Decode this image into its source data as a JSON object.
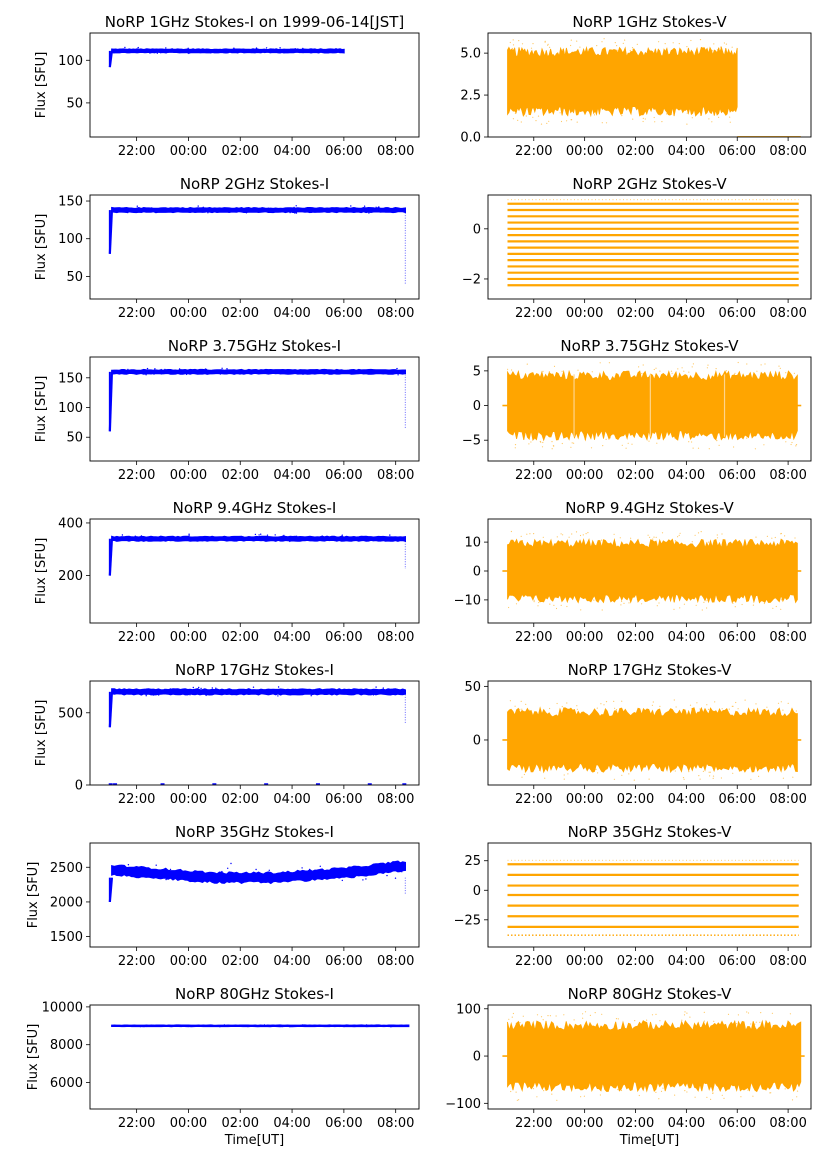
{
  "figure": {
    "x_ticks": [
      "22:00",
      "00:00",
      "02:00",
      "04:00",
      "06:00",
      "08:00"
    ],
    "xlabel": "Time[UT]",
    "ylabel_left": "Flux [SFU]",
    "colors": {
      "stokes_i": "#0000ff",
      "stokes_v": "#ffa500",
      "axes": "#000000",
      "background": "#ffffff"
    }
  },
  "chart_data": [
    {
      "id": "i1",
      "type": "scatter",
      "title": "NoRP 1GHz Stokes-I on 1999-06-14[JST]",
      "ylabel": "Flux [SFU]",
      "xlabel": "",
      "ylim": [
        10,
        132
      ],
      "yticks": [
        "50",
        "100"
      ],
      "yvals": [
        50,
        100
      ],
      "series": [
        {
          "kind": "I",
          "start": "20:58",
          "end": "06:00",
          "level": 111,
          "low": 108,
          "high": 115,
          "rise_from": 92
        }
      ]
    },
    {
      "id": "v1",
      "type": "scatter",
      "title": "NoRP 1GHz Stokes-V",
      "ylabel": "",
      "xlabel": "",
      "ylim": [
        0,
        6.2
      ],
      "yticks": [
        "0.0",
        "2.5",
        "5.0"
      ],
      "yvals": [
        0,
        2.5,
        5
      ],
      "series": [
        {
          "kind": "V",
          "start": "20:58",
          "end": "06:00",
          "level": 3.3,
          "low": 1.3,
          "high": 5.4,
          "tail_end": "08:30",
          "tail_level": 0.02
        }
      ]
    },
    {
      "id": "i2",
      "type": "scatter",
      "title": "NoRP 2GHz Stokes-I",
      "ylabel": "Flux [SFU]",
      "xlabel": "",
      "ylim": [
        20,
        158
      ],
      "yticks": [
        "50",
        "100",
        "150"
      ],
      "yvals": [
        50,
        100,
        150
      ],
      "series": [
        {
          "kind": "I",
          "start": "20:58",
          "end": "08:22",
          "level": 138,
          "low": 134,
          "high": 144,
          "rise_from": 80,
          "drop_to": 40
        }
      ]
    },
    {
      "id": "v2",
      "type": "scatter",
      "title": "NoRP 2GHz Stokes-V",
      "ylabel": "",
      "xlabel": "",
      "ylim": [
        -2.8,
        1.35
      ],
      "yticks": [
        "−2",
        "0"
      ],
      "yvals": [
        -2,
        0
      ],
      "series": [
        {
          "kind": "levels",
          "start": "20:58",
          "end": "08:25",
          "levels": [
            1,
            0.75,
            0.5,
            0.25,
            0,
            -0.25,
            -0.5,
            -0.75,
            -1,
            -1.25,
            -1.5,
            -1.75,
            -2,
            -2.25
          ]
        }
      ]
    },
    {
      "id": "i3",
      "type": "scatter",
      "title": "NoRP 3.75GHz Stokes-I",
      "ylabel": "Flux [SFU]",
      "xlabel": "",
      "ylim": [
        10,
        185
      ],
      "yticks": [
        "50",
        "100",
        "150"
      ],
      "yvals": [
        50,
        100,
        150
      ],
      "series": [
        {
          "kind": "I",
          "start": "20:58",
          "end": "08:22",
          "level": 160,
          "low": 155,
          "high": 167,
          "rise_from": 60,
          "drop_to": 65
        }
      ]
    },
    {
      "id": "v3",
      "type": "scatter",
      "title": "NoRP 3.75GHz Stokes-V",
      "ylabel": "",
      "xlabel": "",
      "ylim": [
        -8,
        7
      ],
      "yticks": [
        "−5",
        "0",
        "5"
      ],
      "yvals": [
        -5,
        0,
        5
      ],
      "series": [
        {
          "kind": "V",
          "start": "20:58",
          "end": "08:22",
          "level": 0,
          "low": -5,
          "high": 5,
          "gaps": [
            "23:35",
            "02:35",
            "05:30"
          ]
        }
      ]
    },
    {
      "id": "i4",
      "type": "scatter",
      "title": "NoRP 9.4GHz Stokes-I",
      "ylabel": "Flux [SFU]",
      "xlabel": "",
      "ylim": [
        20,
        415
      ],
      "yticks": [
        "200",
        "400"
      ],
      "yvals": [
        200,
        400
      ],
      "series": [
        {
          "kind": "I",
          "start": "20:58",
          "end": "08:22",
          "level": 340,
          "low": 330,
          "high": 358,
          "rise_from": 200,
          "drop_to": 225
        }
      ]
    },
    {
      "id": "v4",
      "type": "scatter",
      "title": "NoRP 9.4GHz Stokes-V",
      "ylabel": "",
      "xlabel": "",
      "ylim": [
        -18,
        18
      ],
      "yticks": [
        "−10",
        "0",
        "10"
      ],
      "yvals": [
        -10,
        0,
        10
      ],
      "series": [
        {
          "kind": "V",
          "start": "20:58",
          "end": "08:22",
          "level": 0,
          "low": -11,
          "high": 11
        }
      ]
    },
    {
      "id": "i5",
      "type": "scatter",
      "title": "NoRP 17GHz Stokes-I",
      "ylabel": "Flux [SFU]",
      "xlabel": "",
      "ylim": [
        0,
        720
      ],
      "yticks": [
        "0",
        "500"
      ],
      "yvals": [
        0,
        500
      ],
      "series": [
        {
          "kind": "I",
          "start": "20:58",
          "end": "08:22",
          "level": 645,
          "low": 615,
          "high": 680,
          "rise_from": 400,
          "drop_to": 430,
          "zero_marks": [
            "21:00",
            "21:10",
            "23:00",
            "01:00",
            "03:00",
            "05:00",
            "07:00",
            "08:20"
          ]
        }
      ]
    },
    {
      "id": "v5",
      "type": "scatter",
      "title": "NoRP 17GHz Stokes-V",
      "ylabel": "",
      "xlabel": "",
      "ylim": [
        -42,
        55
      ],
      "yticks": [
        "0",
        "50"
      ],
      "yvals": [
        0,
        50
      ],
      "series": [
        {
          "kind": "V",
          "start": "20:58",
          "end": "08:22",
          "level": 0,
          "low": -28,
          "high": 32
        }
      ]
    },
    {
      "id": "i6",
      "type": "scatter",
      "title": "NoRP 35GHz Stokes-I",
      "ylabel": "Flux [SFU]",
      "xlabel": "",
      "ylim": [
        1350,
        2850
      ],
      "yticks": [
        "1500",
        "2000",
        "2500"
      ],
      "yvals": [
        1500,
        2000,
        2500
      ],
      "series": [
        {
          "kind": "I",
          "start": "20:58",
          "end": "08:22",
          "level": 2350,
          "low": 2300,
          "high": 2560,
          "rise_from": 2000,
          "drop_to": 2100,
          "curve": [
            [
              0,
              2460
            ],
            [
              0.35,
              2350
            ],
            [
              0.55,
              2350
            ],
            [
              0.8,
              2420
            ],
            [
              1,
              2520
            ]
          ]
        }
      ]
    },
    {
      "id": "v6",
      "type": "scatter",
      "title": "NoRP 35GHz Stokes-V",
      "ylabel": "",
      "xlabel": "",
      "ylim": [
        -48,
        40
      ],
      "yticks": [
        "−25",
        "0",
        "25"
      ],
      "yvals": [
        -25,
        0,
        25
      ],
      "series": [
        {
          "kind": "levels",
          "start": "20:58",
          "end": "08:25",
          "levels": [
            22,
            13,
            4,
            -4,
            -13,
            -22,
            -31
          ],
          "dotted_levels": [
            -38
          ]
        }
      ]
    },
    {
      "id": "i7",
      "type": "scatter",
      "title": "NoRP 80GHz Stokes-I",
      "ylabel": "Flux [SFU]",
      "xlabel": "Time[UT]",
      "ylim": [
        4600,
        10100
      ],
      "yticks": [
        "6000",
        "8000",
        "10000"
      ],
      "yvals": [
        6000,
        8000,
        10000
      ],
      "series": [
        {
          "kind": "I",
          "start": "20:58",
          "end": "08:30",
          "level": 9000,
          "low": 8950,
          "high": 9050
        }
      ]
    },
    {
      "id": "v7",
      "type": "scatter",
      "title": "NoRP 80GHz Stokes-V",
      "ylabel": "",
      "xlabel": "Time[UT]",
      "ylim": [
        -112,
        108
      ],
      "yticks": [
        "−100",
        "0",
        "100"
      ],
      "yvals": [
        -100,
        0,
        100
      ],
      "series": [
        {
          "kind": "V",
          "start": "20:58",
          "end": "08:30",
          "level": 0,
          "low": -75,
          "high": 75
        }
      ]
    }
  ]
}
